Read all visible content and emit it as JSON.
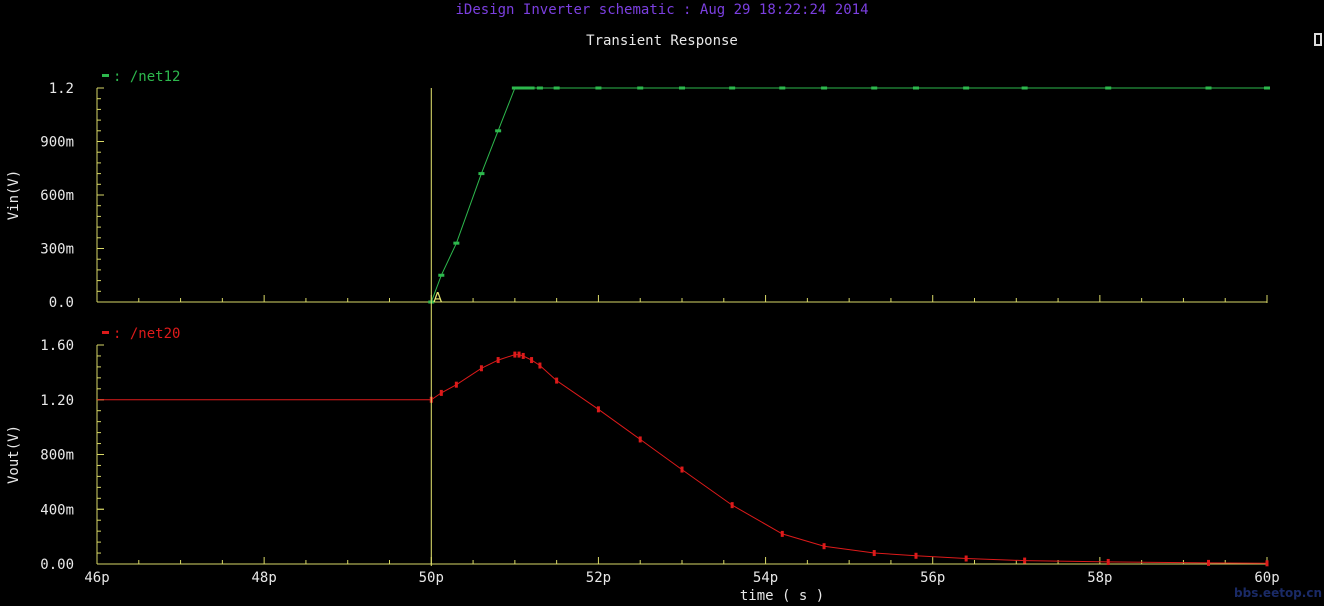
{
  "header": {
    "title": "iDesign Inverter schematic : Aug 29 18:22:24 2014"
  },
  "watermark": "bbs.eetop.cn",
  "chart_data": [
    {
      "type": "line",
      "title": "Transient Response",
      "xlabel": "time ( s )",
      "ylabel": "Vin(V)",
      "xlim": [
        46,
        60
      ],
      "x_unit": "ps",
      "ylim": [
        0,
        1.2
      ],
      "x_ticks": [
        "46p",
        "48p",
        "50p",
        "52p",
        "54p",
        "56p",
        "58p",
        "60p"
      ],
      "y_ticks": [
        "0.0",
        "300m",
        "600m",
        "900m",
        "1.2"
      ],
      "y_tick_values": [
        0,
        0.3,
        0.6,
        0.9,
        1.2
      ],
      "legend": "top-left",
      "color": "#2db84d",
      "marker_label": "A",
      "series": [
        {
          "name": "/net12",
          "x": [
            50.0,
            50.12,
            50.3,
            50.6,
            50.8,
            51.0,
            51.05,
            51.1,
            51.15,
            51.2,
            51.3,
            51.5,
            52.0,
            52.5,
            53.0,
            53.6,
            54.2,
            54.7,
            55.3,
            55.8,
            56.4,
            57.1,
            58.1,
            59.3,
            60.0
          ],
          "y": [
            0.0,
            0.15,
            0.33,
            0.72,
            0.96,
            1.2,
            1.2,
            1.2,
            1.2,
            1.2,
            1.2,
            1.2,
            1.2,
            1.2,
            1.2,
            1.2,
            1.2,
            1.2,
            1.2,
            1.2,
            1.2,
            1.2,
            1.2,
            1.2,
            1.2
          ]
        }
      ]
    },
    {
      "type": "line",
      "xlabel": "time ( s )",
      "ylabel": "Vout(V)",
      "xlim": [
        46,
        60
      ],
      "x_unit": "ps",
      "ylim": [
        0,
        1.6
      ],
      "x_ticks": [
        "46p",
        "48p",
        "50p",
        "52p",
        "54p",
        "56p",
        "58p",
        "60p"
      ],
      "y_ticks": [
        "0.00",
        "400m",
        "800m",
        "1.20",
        "1.60"
      ],
      "y_tick_values": [
        0,
        0.4,
        0.8,
        1.2,
        1.6
      ],
      "legend": "top-left",
      "color": "#dd1a1a",
      "series": [
        {
          "name": "/net20",
          "x": [
            46.0,
            50.0,
            50.12,
            50.3,
            50.6,
            50.8,
            51.0,
            51.05,
            51.1,
            51.2,
            51.3,
            51.5,
            52.0,
            52.5,
            53.0,
            53.6,
            54.2,
            54.7,
            55.3,
            55.8,
            56.4,
            57.1,
            58.1,
            59.3,
            60.0
          ],
          "y": [
            1.2,
            1.2,
            1.25,
            1.31,
            1.43,
            1.49,
            1.53,
            1.53,
            1.52,
            1.49,
            1.45,
            1.34,
            1.13,
            0.91,
            0.69,
            0.43,
            0.22,
            0.13,
            0.08,
            0.06,
            0.04,
            0.025,
            0.015,
            0.008,
            0.005
          ]
        }
      ],
      "cursor_x": 50.0
    }
  ]
}
